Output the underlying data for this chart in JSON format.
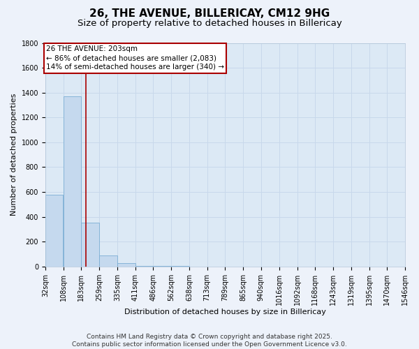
{
  "title_line1": "26, THE AVENUE, BILLERICAY, CM12 9HG",
  "title_line2": "Size of property relative to detached houses in Billericay",
  "xlabel": "Distribution of detached houses by size in Billericay",
  "ylabel": "Number of detached properties",
  "bins": [
    "32sqm",
    "108sqm",
    "183sqm",
    "259sqm",
    "335sqm",
    "411sqm",
    "486sqm",
    "562sqm",
    "638sqm",
    "713sqm",
    "789sqm",
    "865sqm",
    "940sqm",
    "1016sqm",
    "1092sqm",
    "1168sqm",
    "1243sqm",
    "1319sqm",
    "1395sqm",
    "1470sqm",
    "1546sqm"
  ],
  "bin_edges": [
    32,
    108,
    183,
    259,
    335,
    411,
    486,
    562,
    638,
    713,
    789,
    865,
    940,
    1016,
    1092,
    1168,
    1243,
    1319,
    1395,
    1470,
    1546
  ],
  "bar_heights": [
    580,
    1370,
    355,
    90,
    30,
    5,
    3,
    2,
    1,
    1,
    1,
    0,
    0,
    0,
    0,
    0,
    0,
    0,
    0,
    0
  ],
  "bar_color": "#c5d9ee",
  "bar_edge_color": "#7aadd4",
  "property_size": 203,
  "vline_color": "#aa0000",
  "annotation_text": "26 THE AVENUE: 203sqm\n← 86% of detached houses are smaller (2,083)\n14% of semi-detached houses are larger (340) →",
  "annotation_box_color": "#aa0000",
  "annotation_text_color": "#000000",
  "annotation_bg_color": "#ffffff",
  "ylim": [
    0,
    1800
  ],
  "yticks": [
    0,
    200,
    400,
    600,
    800,
    1000,
    1200,
    1400,
    1600,
    1800
  ],
  "chart_bg_color": "#dce9f5",
  "fig_bg_color": "#edf2fa",
  "grid_color": "#c8d8eb",
  "footer_text": "Contains HM Land Registry data © Crown copyright and database right 2025.\nContains public sector information licensed under the Open Government Licence v3.0.",
  "title_fontsize": 11,
  "subtitle_fontsize": 9.5,
  "axis_label_fontsize": 8,
  "tick_fontsize": 7,
  "annotation_fontsize": 7.5,
  "footer_fontsize": 6.5
}
